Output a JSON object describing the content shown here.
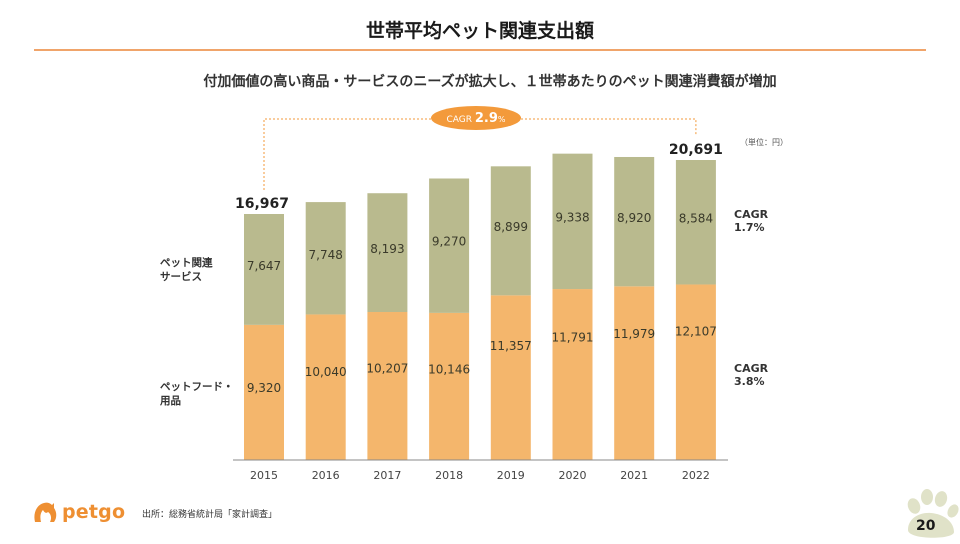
{
  "header": {
    "title": "世帯平均ペット関連支出額",
    "subtitle": "付加価値の高い商品・サービスのニーズが拡大し、１世帯あたりのペット関連消費額が増加"
  },
  "unit_label": "（単位：円）",
  "cagr_total_label": "CAGR",
  "cagr_total_value": "2.9",
  "cagr_total_unit": "%",
  "footer": {
    "logo_text": "petgo",
    "source": "出所：総務省統計局「家計調査」",
    "page_number": "20"
  },
  "colors": {
    "services": "#b9ba8e",
    "food": "#f4b66c",
    "accent": "#f39a3b",
    "paw": "#e0e2c8"
  },
  "chart_data": {
    "type": "bar",
    "stacked": true,
    "title": "世帯平均ペット関連支出額",
    "xlabel": "",
    "ylabel": "",
    "unit": "円",
    "categories": [
      "2015",
      "2016",
      "2017",
      "2018",
      "2019",
      "2020",
      "2021",
      "2022"
    ],
    "series": [
      {
        "name": "ペットフード・用品",
        "label_lines": [
          "ペットフード・",
          "用品"
        ],
        "values": [
          9320,
          10040,
          10207,
          10146,
          11357,
          11791,
          11979,
          12107
        ],
        "value_labels": [
          "9,320",
          "10,040",
          "10,207",
          "10,146",
          "11,357",
          "11,791",
          "11,979",
          "12,107"
        ],
        "cagr": "CAGR\n3.8%"
      },
      {
        "name": "ペット関連サービス",
        "label_lines": [
          "ペット関連",
          "サービス"
        ],
        "values": [
          7647,
          7748,
          8193,
          9270,
          8899,
          9338,
          8920,
          8584
        ],
        "value_labels": [
          "7,647",
          "7,748",
          "8,193",
          "9,270",
          "8,899",
          "9,338",
          "8,920",
          "8,584"
        ],
        "cagr": "CAGR\n1.7%"
      }
    ],
    "totals": [
      {
        "category": "2015",
        "label": "16,967"
      },
      {
        "category": "2022",
        "label": "20,691"
      }
    ],
    "annotations": [
      {
        "text": "CAGR 2.9%",
        "from": "2015",
        "to": "2022"
      }
    ],
    "ylim": [
      0,
      22000
    ],
    "grid": false,
    "legend": "left"
  }
}
